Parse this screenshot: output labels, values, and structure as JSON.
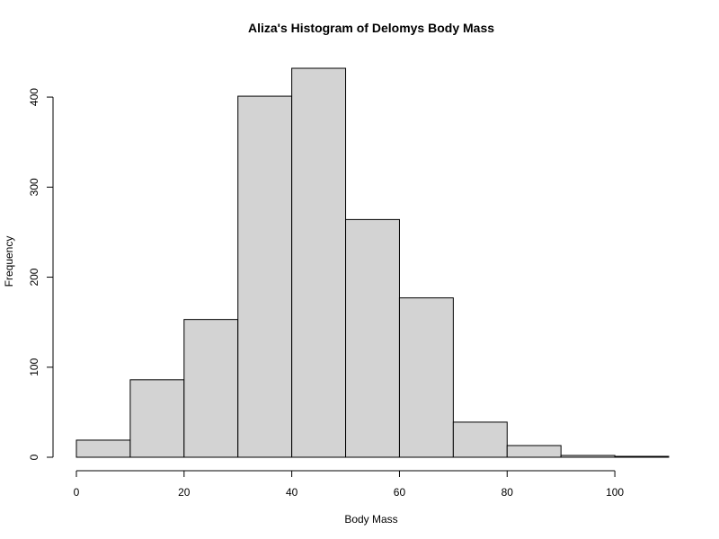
{
  "chart_data": {
    "type": "bar",
    "subtype": "histogram",
    "title": "Aliza's Histogram of Delomys Body Mass",
    "xlabel": "Body Mass",
    "ylabel": "Frequency",
    "bins": [
      {
        "start": 0,
        "end": 10,
        "count": 19
      },
      {
        "start": 10,
        "end": 20,
        "count": 86
      },
      {
        "start": 20,
        "end": 30,
        "count": 153
      },
      {
        "start": 30,
        "end": 40,
        "count": 401
      },
      {
        "start": 40,
        "end": 50,
        "count": 432
      },
      {
        "start": 50,
        "end": 60,
        "count": 264
      },
      {
        "start": 60,
        "end": 70,
        "count": 177
      },
      {
        "start": 70,
        "end": 80,
        "count": 39
      },
      {
        "start": 80,
        "end": 90,
        "count": 13
      },
      {
        "start": 90,
        "end": 100,
        "count": 2
      },
      {
        "start": 100,
        "end": 110,
        "count": 1
      }
    ],
    "xlim": [
      0,
      110
    ],
    "ylim": [
      0,
      432
    ],
    "xticks": [
      0,
      20,
      40,
      60,
      80,
      100
    ],
    "yticks": [
      0,
      100,
      200,
      300,
      400
    ],
    "bar_fill": "#d3d3d3",
    "bar_stroke": "#000000",
    "grid": false,
    "legend": "none"
  }
}
